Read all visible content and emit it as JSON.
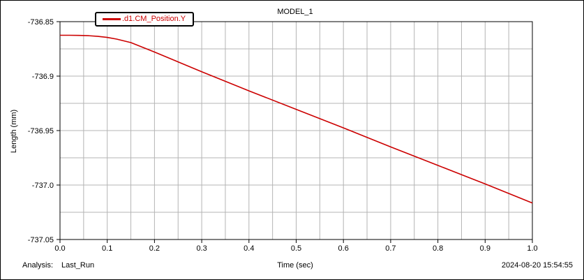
{
  "chart_data": {
    "type": "line",
    "title": "MODEL_1",
    "xlabel": "Time (sec)",
    "ylabel": "Length (mm)",
    "xlim": [
      0.0,
      1.0
    ],
    "ylim": [
      -737.05,
      -736.85
    ],
    "xticks": [
      "0.0",
      "0.1",
      "0.2",
      "0.3",
      "0.4",
      "0.5",
      "0.6",
      "0.7",
      "0.8",
      "0.9",
      "1.0"
    ],
    "yticks": [
      "-736.85",
      "-736.9",
      "-736.95",
      "-737.0",
      "-737.05"
    ],
    "grid": true,
    "legend_position": "top-left",
    "series": [
      {
        "name": ".d1.CM_Position.Y",
        "color": "#cc0000",
        "x": [
          0.0,
          0.02,
          0.04,
          0.06,
          0.08,
          0.1,
          0.12,
          0.15,
          0.2,
          0.3,
          0.4,
          0.5,
          0.6,
          0.7,
          0.8,
          0.9,
          1.0
        ],
        "y": [
          -736.8625,
          -736.8625,
          -736.8626,
          -736.8629,
          -736.8635,
          -736.8645,
          -736.866,
          -736.8692,
          -736.8779,
          -736.896,
          -736.9135,
          -736.9305,
          -736.9475,
          -736.965,
          -736.982,
          -736.999,
          -737.0165
        ]
      }
    ]
  },
  "footer": {
    "analysis_label": "Analysis:",
    "analysis_value": "Last_Run",
    "timestamp": "2024-08-20 15:54:55"
  }
}
